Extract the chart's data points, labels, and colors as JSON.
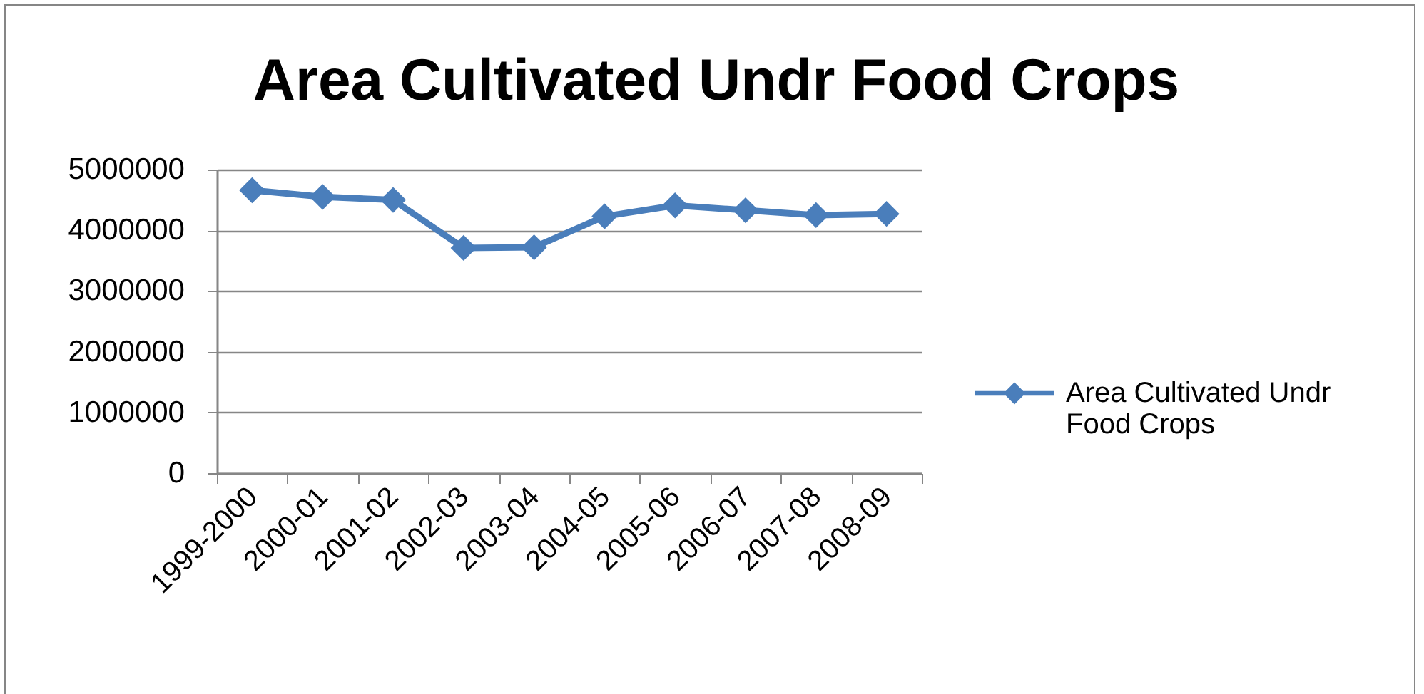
{
  "chart_data": {
    "type": "line",
    "title": "Area Cultivated Undr Food Crops",
    "categories": [
      "1999-2000",
      "2000-01",
      "2001-02",
      "2002-03",
      "2003-04",
      "2004-05",
      "2005-06",
      "2006-07",
      "2007-08",
      "2008-09"
    ],
    "series": [
      {
        "name": "Area Cultivated Undr Food Crops",
        "color": "#4a7ebb",
        "values": [
          4660000,
          4550000,
          4500000,
          3710000,
          3720000,
          4230000,
          4410000,
          4330000,
          4250000,
          4270000
        ]
      }
    ],
    "ylim": [
      0,
      5000000
    ],
    "yticks": [
      0,
      1000000,
      2000000,
      3000000,
      4000000,
      5000000
    ],
    "grid": "y",
    "legend": "right",
    "marker": "diamond",
    "line_style": "solid"
  }
}
